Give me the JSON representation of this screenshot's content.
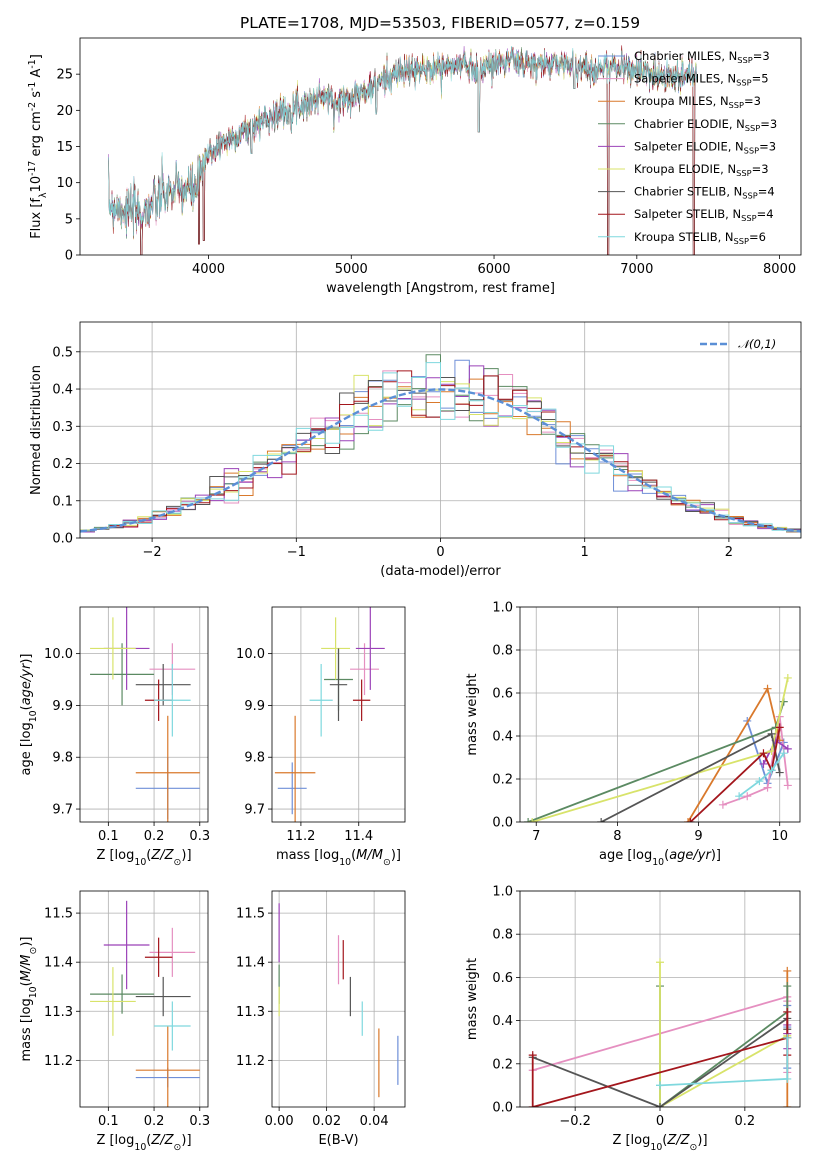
{
  "page": {
    "title": "PLATE=1708, MJD=53503, FIBERID=0577, z=0.159"
  },
  "models": [
    {
      "name": "Chabrier MILES, N$_{SSP}$=3",
      "label_main": "Chabrier MILES, N",
      "label_sub": "SSP",
      "label_tail": "=3",
      "color": "#6f8fd8"
    },
    {
      "name": "Salpeter MILES, N$_{SSP}$=5",
      "label_main": "Salpeter MILES, N",
      "label_sub": "SSP",
      "label_tail": "=5",
      "color": "#e58fc0"
    },
    {
      "name": "Kroupa MILES, N$_{SSP}$=3",
      "label_main": "Kroupa MILES, N",
      "label_sub": "SSP",
      "label_tail": "=3",
      "color": "#d9792c"
    },
    {
      "name": "Chabrier ELODIE, N$_{SSP}$=3",
      "label_main": "Chabrier ELODIE, N",
      "label_sub": "SSP",
      "label_tail": "=3",
      "color": "#5b8a62"
    },
    {
      "name": "Salpeter ELODIE, N$_{SSP}$=3",
      "label_main": "Salpeter ELODIE, N",
      "label_sub": "SSP",
      "label_tail": "=3",
      "color": "#9b42b8"
    },
    {
      "name": "Kroupa ELODIE, N$_{SSP}$=3",
      "label_main": "Kroupa ELODIE, N",
      "label_sub": "SSP",
      "label_tail": "=3",
      "color": "#d8e36a"
    },
    {
      "name": "Chabrier STELIB, N$_{SSP}$=4",
      "label_main": "Chabrier STELIB, N",
      "label_sub": "SSP",
      "label_tail": "=4",
      "color": "#555555"
    },
    {
      "name": "Salpeter STELIB, N$_{SSP}$=4",
      "label_main": "Salpeter STELIB, N",
      "label_sub": "SSP",
      "label_tail": "=4",
      "color": "#a3161c"
    },
    {
      "name": "Kroupa STELIB, N$_{SSP}$=6",
      "label_main": "Kroupa STELIB, N",
      "label_sub": "SSP",
      "label_tail": "=6",
      "color": "#7fd8de"
    }
  ],
  "chart_data": [
    {
      "id": "spectrum",
      "type": "line",
      "title": "PLATE=1708, MJD=53503, FIBERID=0577, z=0.159",
      "xlabel": "wavelength [Angstrom, rest frame]",
      "ylabel": "Flux [f$_\\lambda$10$^{-17}$ erg cm$^{-2}$ s$^{-1}$ A$^{-1}$]",
      "xlim": [
        3100,
        8150
      ],
      "ylim": [
        0,
        30
      ],
      "xticks": [
        4000,
        5000,
        6000,
        7000,
        8000
      ],
      "yticks": [
        0,
        5,
        10,
        15,
        20,
        25
      ],
      "grid": false,
      "legend": "top-right",
      "continuum_x": [
        3300,
        3450,
        3550,
        3700,
        3800,
        3900,
        3950,
        4000,
        4100,
        4200,
        4300,
        4400,
        4500,
        4600,
        4700,
        4800,
        4900,
        5000,
        5100,
        5200,
        5300,
        5400,
        5500,
        5600,
        5700,
        5800,
        5900,
        6000,
        6100,
        6200,
        6300,
        6400,
        6500,
        6600,
        6700,
        6800,
        6900,
        7000,
        7100,
        7200,
        7300,
        7400
      ],
      "continuum_y": [
        7.0,
        6.0,
        6.0,
        8.5,
        9.0,
        9.0,
        11.0,
        14.0,
        15.5,
        16.5,
        17.5,
        19.0,
        19.5,
        20.5,
        21.0,
        22.0,
        21.0,
        22.0,
        22.5,
        24.0,
        25.0,
        25.5,
        25.5,
        26.0,
        26.0,
        26.5,
        25.5,
        26.5,
        27.0,
        26.5,
        26.0,
        26.5,
        26.5,
        26.0,
        25.5,
        26.0,
        26.0,
        25.5,
        25.0,
        25.0,
        24.5,
        25.0
      ],
      "dips": [
        [
          3530,
          0
        ],
        [
          3933,
          1.5
        ],
        [
          3968,
          2.0
        ],
        [
          4300,
          14.0
        ],
        [
          5175,
          19.5
        ],
        [
          5893,
          17.0
        ],
        [
          6563,
          23.0
        ],
        [
          6800,
          0
        ],
        [
          7400,
          0
        ]
      ]
    },
    {
      "id": "residual-hist",
      "type": "histogram",
      "xlabel": "(data-model)/error",
      "ylabel": "Normed distribution",
      "xlim": [
        -2.5,
        2.5
      ],
      "ylim": [
        0,
        0.58
      ],
      "xticks": [
        -2,
        -1,
        0,
        1,
        2
      ],
      "yticks": [
        0.0,
        0.1,
        0.2,
        0.3,
        0.4,
        0.5
      ],
      "legend": "top-right",
      "reference_label": "$\\mathcal{N}(0,1)$",
      "reference_color": "#5b8fd6",
      "grid": true
    },
    {
      "id": "age-vs-Z",
      "type": "errorbar",
      "xlabel": "Z [log$_{10}$($Z/Z_\\odot$)]",
      "ylabel": "age  [log$_{10}$($age/yr$)]",
      "xlim": [
        0.038,
        0.318
      ],
      "ylim": [
        9.675,
        10.09
      ],
      "xticks": [
        0.1,
        0.2,
        0.3
      ],
      "yticks": [
        9.7,
        9.8,
        9.9,
        10.0
      ],
      "grid": true,
      "points": [
        {
          "model": 0,
          "x": 0.23,
          "xerr": 0.07,
          "y": 9.74,
          "yerr": 0.06
        },
        {
          "model": 1,
          "x": 0.24,
          "xerr": 0.05,
          "y": 9.97,
          "yerr": 0.05
        },
        {
          "model": 2,
          "x": 0.23,
          "xerr": 0.07,
          "y": 9.77,
          "yerr": 0.11
        },
        {
          "model": 3,
          "x": 0.13,
          "xerr": 0.07,
          "y": 9.96,
          "yerr": 0.06
        },
        {
          "model": 4,
          "x": 0.14,
          "xerr": 0.05,
          "y": 10.01,
          "yerr": 0.08
        },
        {
          "model": 5,
          "x": 0.11,
          "xerr": 0.05,
          "y": 10.01,
          "yerr": 0.06
        },
        {
          "model": 6,
          "x": 0.22,
          "xerr": 0.06,
          "y": 9.94,
          "yerr": 0.04
        },
        {
          "model": 7,
          "x": 0.21,
          "xerr": 0.03,
          "y": 9.91,
          "yerr": 0.04
        },
        {
          "model": 8,
          "x": 0.24,
          "xerr": 0.04,
          "y": 9.91,
          "yerr": 0.07
        }
      ]
    },
    {
      "id": "age-vs-mass",
      "type": "errorbar",
      "xlabel": "mass [log$_{10}$($M/M_\\odot$)]",
      "ylabel": "",
      "xlim": [
        11.1,
        11.56
      ],
      "ylim": [
        9.675,
        10.09
      ],
      "xticks": [
        11.2,
        11.4
      ],
      "yticks": [
        9.7,
        9.8,
        9.9,
        10.0
      ],
      "grid": true,
      "points": [
        {
          "model": 0,
          "x": 11.17,
          "xerr": 0.05,
          "y": 9.74,
          "yerr": 0.05
        },
        {
          "model": 1,
          "x": 11.42,
          "xerr": 0.05,
          "y": 9.97,
          "yerr": 0.05
        },
        {
          "model": 2,
          "x": 11.18,
          "xerr": 0.07,
          "y": 9.77,
          "yerr": 0.11
        },
        {
          "model": 3,
          "x": 11.33,
          "xerr": 0.05,
          "y": 9.95,
          "yerr": 0.06
        },
        {
          "model": 4,
          "x": 11.44,
          "xerr": 0.05,
          "y": 10.01,
          "yerr": 0.08
        },
        {
          "model": 5,
          "x": 11.32,
          "xerr": 0.05,
          "y": 10.01,
          "yerr": 0.06
        },
        {
          "model": 6,
          "x": 11.33,
          "xerr": 0.03,
          "y": 9.94,
          "yerr": 0.07
        },
        {
          "model": 7,
          "x": 11.41,
          "xerr": 0.03,
          "y": 9.91,
          "yerr": 0.04
        },
        {
          "model": 8,
          "x": 11.27,
          "xerr": 0.04,
          "y": 9.91,
          "yerr": 0.07
        }
      ]
    },
    {
      "id": "mass-weight-vs-age",
      "type": "line",
      "xlabel": "age  [log$_{10}$($age/yr$)]",
      "ylabel": "mass weight",
      "xlim": [
        6.8,
        10.25
      ],
      "ylim": [
        0,
        1.0
      ],
      "xticks": [
        7,
        8,
        9,
        10
      ],
      "yticks": [
        0.0,
        0.2,
        0.4,
        0.6,
        0.8,
        1.0
      ],
      "grid": true,
      "series": [
        {
          "model": 0,
          "x": [
            9.6,
            9.85,
            10.05
          ],
          "y": [
            0.47,
            0.18,
            0.37
          ]
        },
        {
          "model": 1,
          "x": [
            9.3,
            9.6,
            9.85,
            10.0,
            10.1
          ],
          "y": [
            0.08,
            0.12,
            0.16,
            0.49,
            0.17
          ]
        },
        {
          "model": 2,
          "x": [
            8.87,
            9.85,
            10.0
          ],
          "y": [
            0.0,
            0.62,
            0.38
          ]
        },
        {
          "model": 3,
          "x": [
            6.9,
            9.95,
            10.05
          ],
          "y": [
            0.0,
            0.44,
            0.56
          ]
        },
        {
          "model": 4,
          "x": [
            9.8,
            9.95,
            10.1
          ],
          "y": [
            0.27,
            0.38,
            0.34
          ]
        },
        {
          "model": 5,
          "x": [
            6.95,
            9.9,
            10.1
          ],
          "y": [
            0.0,
            0.33,
            0.67
          ]
        },
        {
          "model": 6,
          "x": [
            7.8,
            9.9,
            10.0
          ],
          "y": [
            0.0,
            0.41,
            0.23
          ]
        },
        {
          "model": 7,
          "x": [
            8.9,
            9.8,
            9.9,
            10.0
          ],
          "y": [
            0.0,
            0.32,
            0.24,
            0.44
          ]
        },
        {
          "model": 8,
          "x": [
            9.5,
            9.75,
            9.9,
            10.05
          ],
          "y": [
            0.12,
            0.19,
            0.24,
            0.32
          ]
        }
      ]
    },
    {
      "id": "mass-vs-Z",
      "type": "errorbar",
      "xlabel": "Z [log$_{10}$($Z/Z_\\odot$)]",
      "ylabel": "mass [log$_{10}$($M/M_\\odot$)]",
      "xlim": [
        0.038,
        0.318
      ],
      "ylim": [
        11.105,
        11.545
      ],
      "xticks": [
        0.1,
        0.2,
        0.3
      ],
      "yticks": [
        11.2,
        11.3,
        11.4,
        11.5
      ],
      "grid": true,
      "points": [
        {
          "model": 0,
          "x": 0.23,
          "xerr": 0.07,
          "y": 11.165,
          "yerr": 0.02
        },
        {
          "model": 1,
          "x": 0.24,
          "xerr": 0.05,
          "y": 11.42,
          "yerr": 0.05
        },
        {
          "model": 2,
          "x": 0.23,
          "xerr": 0.07,
          "y": 11.18,
          "yerr": 0.09
        },
        {
          "model": 3,
          "x": 0.13,
          "xerr": 0.07,
          "y": 11.335,
          "yerr": 0.04
        },
        {
          "model": 4,
          "x": 0.14,
          "xerr": 0.05,
          "y": 11.435,
          "yerr": 0.09
        },
        {
          "model": 5,
          "x": 0.11,
          "xerr": 0.05,
          "y": 11.32,
          "yerr": 0.07
        },
        {
          "model": 6,
          "x": 0.22,
          "xerr": 0.06,
          "y": 11.33,
          "yerr": 0.04
        },
        {
          "model": 7,
          "x": 0.21,
          "xerr": 0.03,
          "y": 11.41,
          "yerr": 0.04
        },
        {
          "model": 8,
          "x": 0.24,
          "xerr": 0.04,
          "y": 11.27,
          "yerr": 0.05
        }
      ]
    },
    {
      "id": "mass-vs-ebv",
      "type": "errorbar",
      "xlabel": "E(B-V)",
      "ylabel": "",
      "xlim": [
        -0.003,
        0.053
      ],
      "ylim": [
        11.105,
        11.545
      ],
      "xticks": [
        0.0,
        0.02,
        0.04
      ],
      "yticks": [
        11.2,
        11.3,
        11.4,
        11.5
      ],
      "grid": true,
      "points": [
        {
          "model": 0,
          "x": 0.05,
          "xerr": 0,
          "y": 11.2,
          "yerr": 0.05
        },
        {
          "model": 1,
          "x": 0.025,
          "xerr": 0,
          "y": 11.405,
          "yerr": 0.05
        },
        {
          "model": 2,
          "x": 0.042,
          "xerr": 0,
          "y": 11.195,
          "yerr": 0.07
        },
        {
          "model": 3,
          "x": 0.0,
          "xerr": 0,
          "y": 11.355,
          "yerr": 0.04
        },
        {
          "model": 4,
          "x": 0.0,
          "xerr": 0,
          "y": 11.46,
          "yerr": 0.06
        },
        {
          "model": 5,
          "x": 0.0,
          "xerr": 0,
          "y": 11.32,
          "yerr": 0.03
        },
        {
          "model": 6,
          "x": 0.03,
          "xerr": 0,
          "y": 11.33,
          "yerr": 0.04
        },
        {
          "model": 7,
          "x": 0.027,
          "xerr": 0,
          "y": 11.405,
          "yerr": 0.04
        },
        {
          "model": 8,
          "x": 0.035,
          "xerr": 0,
          "y": 11.285,
          "yerr": 0.035
        }
      ]
    },
    {
      "id": "mass-weight-vs-Z",
      "type": "line",
      "xlabel": "Z [log$_{10}$($Z/Z_\\odot$)]",
      "ylabel": "mass weight",
      "xlim": [
        -0.33,
        0.33
      ],
      "ylim": [
        0,
        1.0
      ],
      "xticks": [
        -0.2,
        0.0,
        0.2
      ],
      "yticks": [
        0.0,
        0.2,
        0.4,
        0.6,
        0.8,
        1.0
      ],
      "grid": true,
      "series": [
        {
          "model": 0,
          "x": [
            0.3,
            0.3,
            0.3
          ],
          "y": [
            0.47,
            0.18,
            0.37
          ]
        },
        {
          "model": 1,
          "x": [
            -0.3,
            0.3,
            0.3,
            0.3
          ],
          "y": [
            0.17,
            0.51,
            0.16,
            0.49
          ]
        },
        {
          "model": 2,
          "x": [
            0.3,
            0.3,
            0.3
          ],
          "y": [
            0.63,
            0.0,
            0.34
          ]
        },
        {
          "model": 3,
          "x": [
            0.0,
            0.0,
            0.3,
            0.3
          ],
          "y": [
            0.56,
            0.0,
            0.44,
            0.56
          ]
        },
        {
          "model": 4,
          "x": [
            0.3,
            0.3,
            0.3
          ],
          "y": [
            0.27,
            0.38,
            0.34
          ]
        },
        {
          "model": 5,
          "x": [
            0.0,
            0.0,
            0.3
          ],
          "y": [
            0.67,
            0.0,
            0.33
          ]
        },
        {
          "model": 6,
          "x": [
            -0.3,
            0.0,
            0.3,
            0.3
          ],
          "y": [
            0.23,
            0.0,
            0.41,
            0.36
          ]
        },
        {
          "model": 7,
          "x": [
            -0.3,
            -0.3,
            0.3,
            0.3,
            0.3
          ],
          "y": [
            0.24,
            0.0,
            0.32,
            0.24,
            0.44
          ]
        },
        {
          "model": 8,
          "x": [
            0.0,
            0.0,
            0.3,
            0.3
          ],
          "y": [
            0.1,
            0.1,
            0.13,
            0.32
          ]
        }
      ]
    }
  ]
}
